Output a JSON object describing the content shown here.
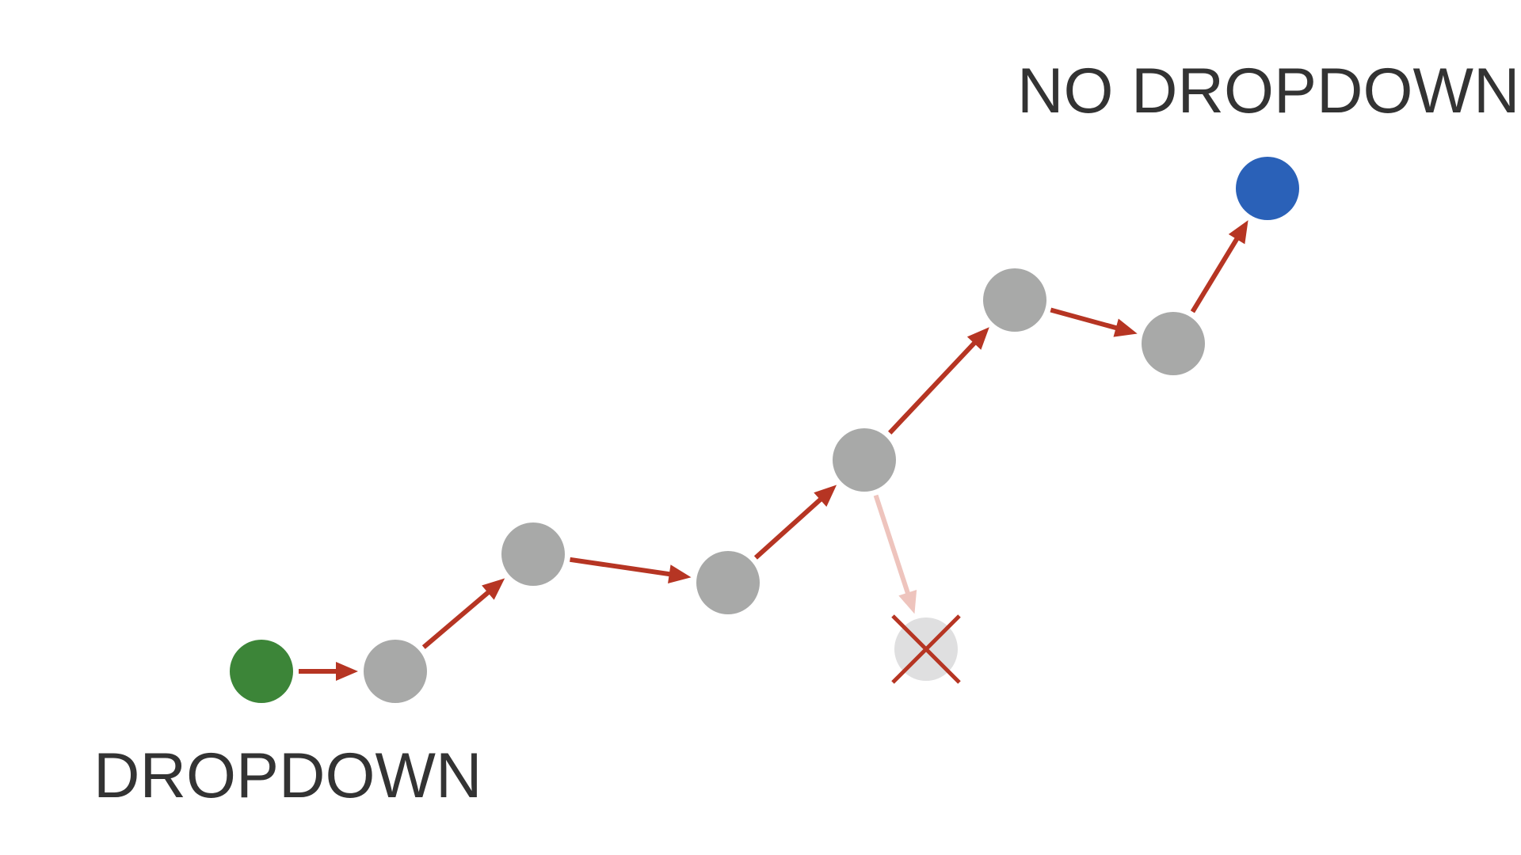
{
  "labels": {
    "start": "DROPDOWN",
    "goal": "NO DROPDOWN"
  },
  "colors": {
    "start_node": "#3c8538",
    "goal_node": "#2a61b8",
    "path_node": "#a8a9a8",
    "failed_node": "#dfdfe0",
    "arrow": "#b63523",
    "failed_arrow": "#eec4bd",
    "failed_mark": "#b63523",
    "text": "#333333"
  },
  "nodes": [
    {
      "id": "start",
      "kind": "start"
    },
    {
      "id": "step-1",
      "kind": "path"
    },
    {
      "id": "step-2",
      "kind": "path"
    },
    {
      "id": "step-3",
      "kind": "path"
    },
    {
      "id": "step-4",
      "kind": "path"
    },
    {
      "id": "step-5",
      "kind": "path"
    },
    {
      "id": "step-6",
      "kind": "path"
    },
    {
      "id": "goal",
      "kind": "goal"
    },
    {
      "id": "dead-end",
      "kind": "failed"
    }
  ],
  "edges": [
    {
      "from": "start",
      "to": "step-1",
      "status": "active"
    },
    {
      "from": "step-1",
      "to": "step-2",
      "status": "active"
    },
    {
      "from": "step-2",
      "to": "step-3",
      "status": "active"
    },
    {
      "from": "step-3",
      "to": "step-4",
      "status": "active"
    },
    {
      "from": "step-4",
      "to": "step-5",
      "status": "active"
    },
    {
      "from": "step-5",
      "to": "step-6",
      "status": "active"
    },
    {
      "from": "step-6",
      "to": "goal",
      "status": "active"
    },
    {
      "from": "step-4",
      "to": "dead-end",
      "status": "failed"
    }
  ]
}
